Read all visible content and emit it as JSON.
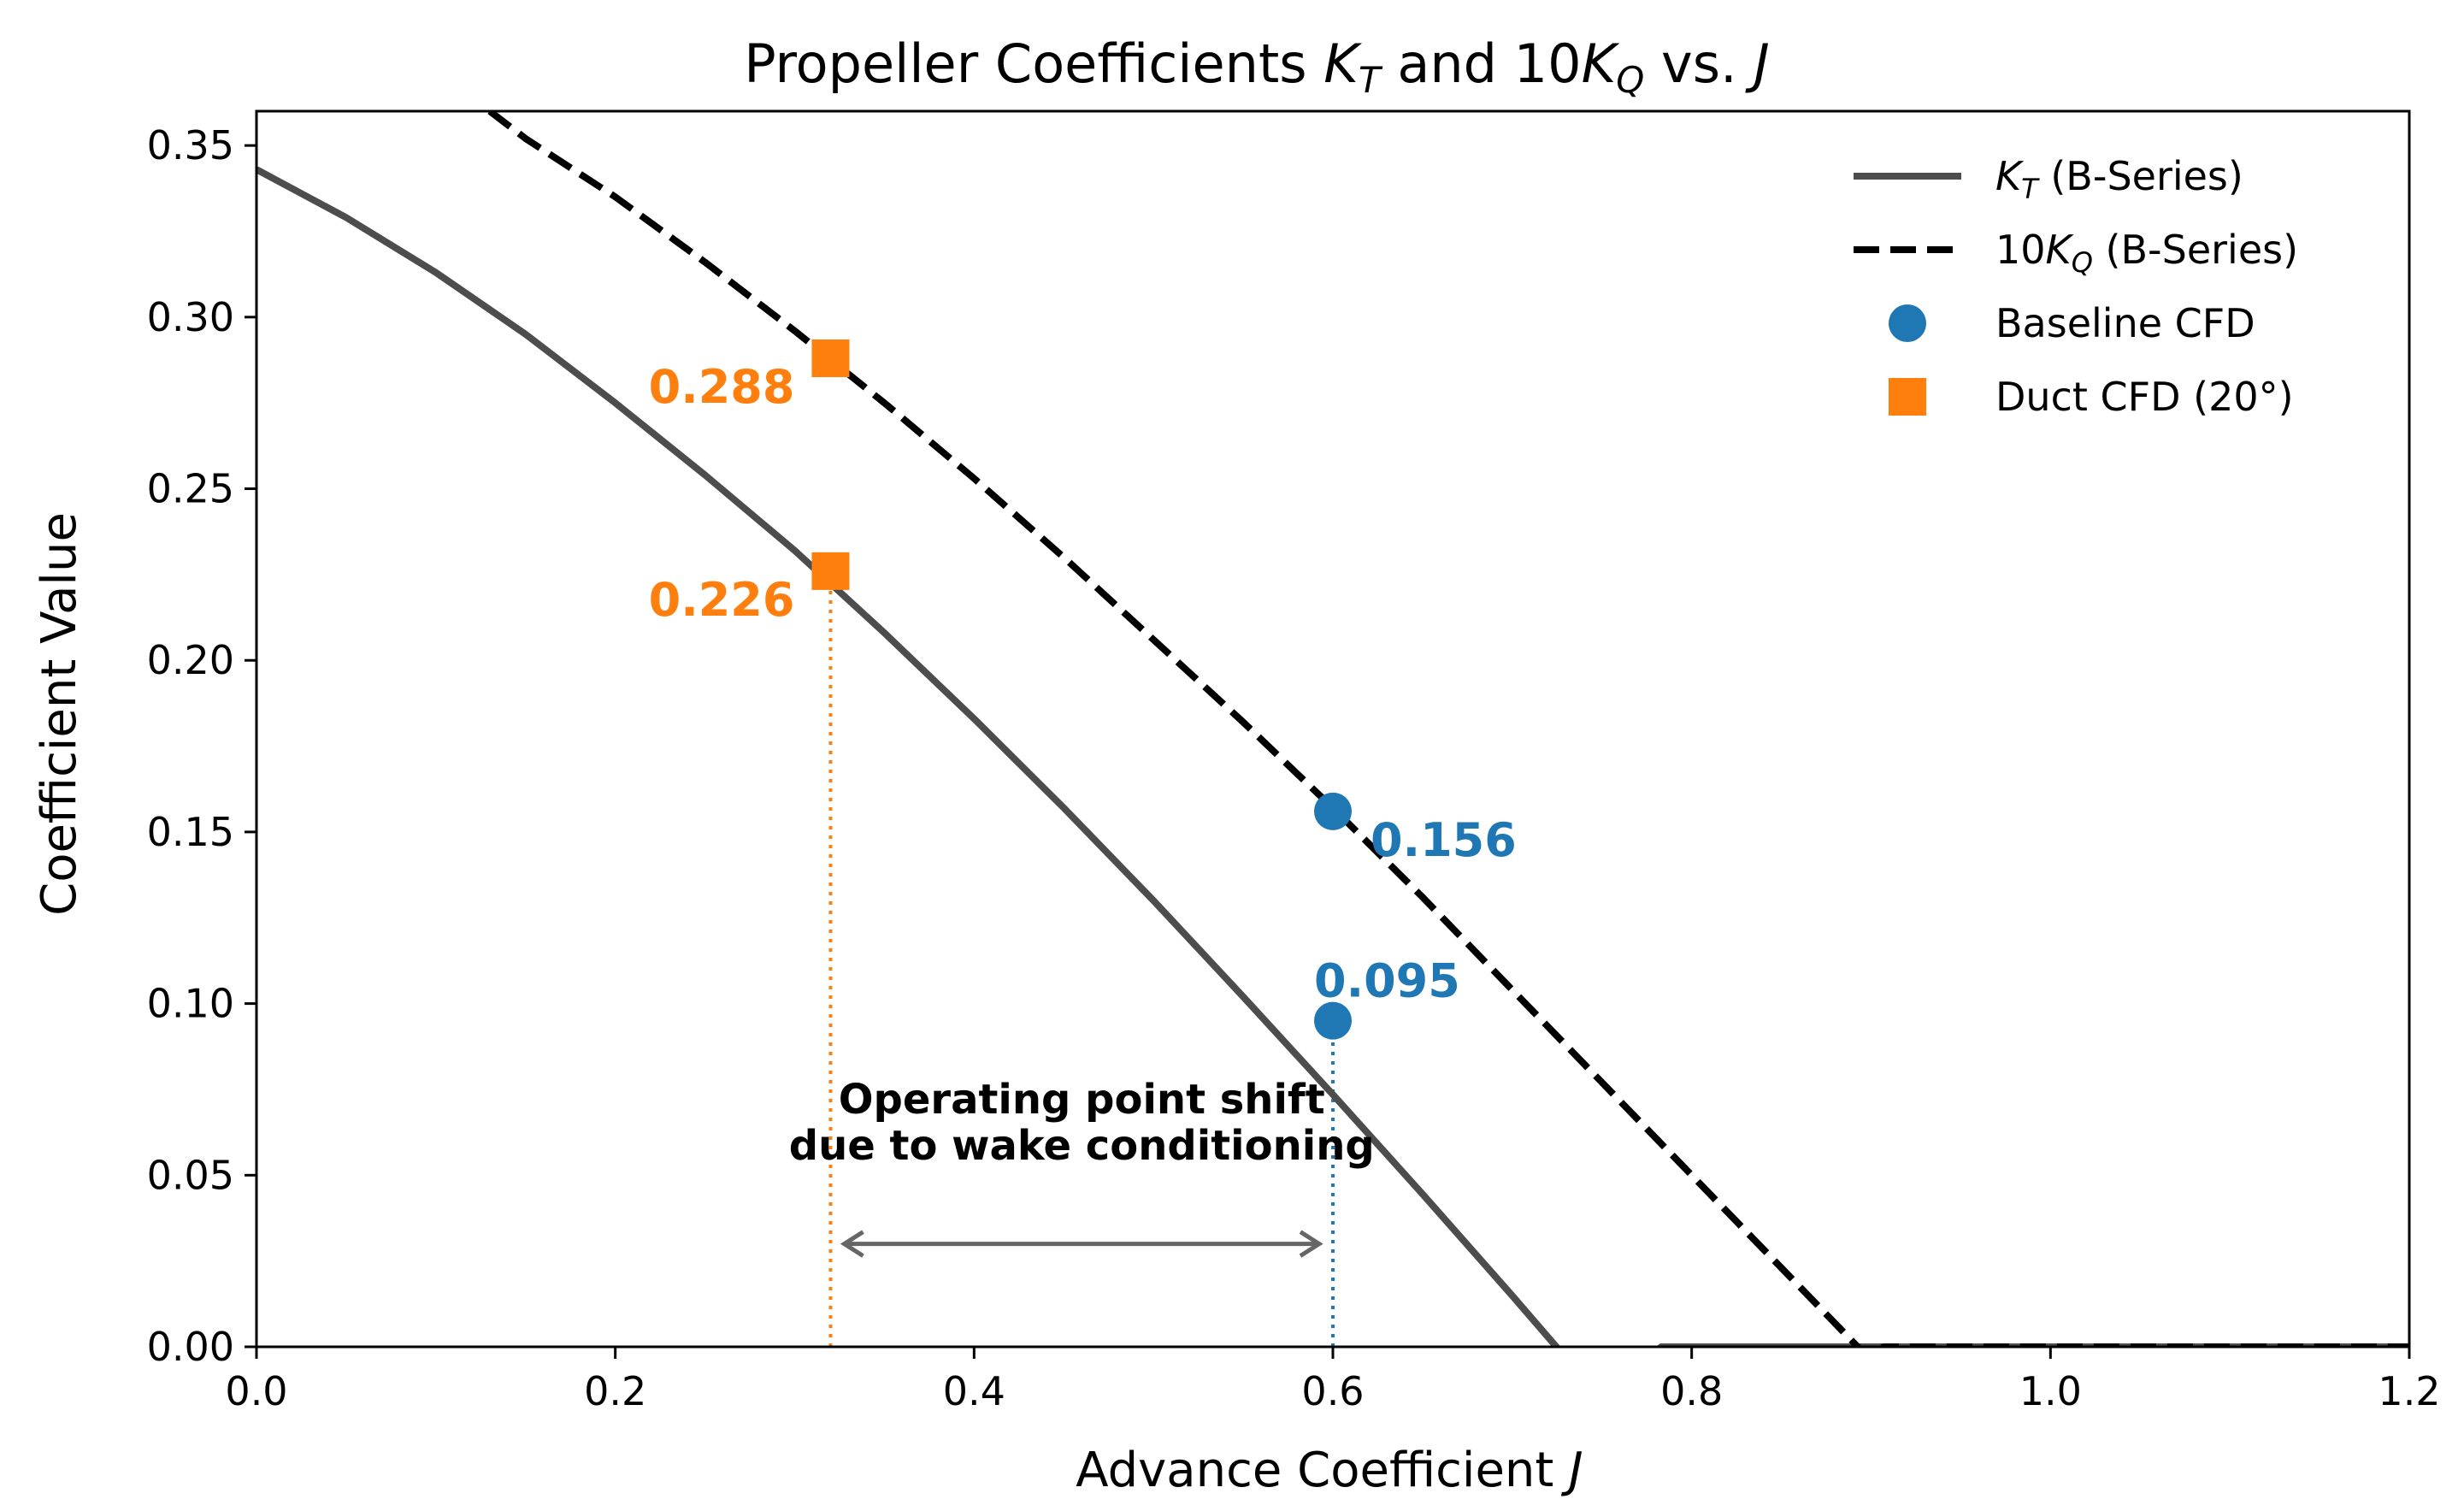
{
  "chart_data": {
    "type": "line",
    "title": "Propeller Coefficients K_T and 10K_Q vs. J",
    "title_parts": {
      "prefix": "Propeller Coefficients ",
      "kt_main": "K",
      "kt_sub": "T",
      "mid": " and 10",
      "kq_main": "K",
      "kq_sub": "Q",
      "suffix": " vs. ",
      "j": "J"
    },
    "xlabel": "Advance Coefficient J",
    "xlabel_parts": {
      "text": "Advance Coefficient ",
      "var": "J"
    },
    "ylabel": "Coefficient Value",
    "xlim": [
      0.0,
      1.2
    ],
    "ylim": [
      0.0,
      0.36
    ],
    "x_ticks": [
      0.0,
      0.2,
      0.4,
      0.6,
      0.8,
      1.0,
      1.2
    ],
    "x_tick_labels": [
      "0.0",
      "0.2",
      "0.4",
      "0.6",
      "0.8",
      "1.0",
      "1.2"
    ],
    "y_ticks": [
      0.0,
      0.05,
      0.1,
      0.15,
      0.2,
      0.25,
      0.3,
      0.35
    ],
    "y_tick_labels": [
      "0.00",
      "0.05",
      "0.10",
      "0.15",
      "0.20",
      "0.25",
      "0.30",
      "0.35"
    ],
    "series": [
      {
        "name": "K_T (B-Series)",
        "style": "solid",
        "color": "#4d4d4d",
        "x": [
          0.0,
          0.05,
          0.1,
          0.15,
          0.2,
          0.25,
          0.3,
          0.35,
          0.4,
          0.45,
          0.5,
          0.55,
          0.6,
          0.65,
          0.7,
          0.75,
          0.783,
          0.8,
          0.9,
          1.0,
          1.1,
          1.2
        ],
        "values": [
          0.343,
          0.329,
          0.313,
          0.295,
          0.275,
          0.254,
          0.232,
          0.208,
          0.183,
          0.157,
          0.13,
          0.102,
          0.0735,
          0.0445,
          0.0149,
          -0.0154,
          0.0,
          0.0,
          0.0,
          0.0,
          0.0,
          0.0
        ]
      },
      {
        "name": "10K_Q (B-Series)",
        "style": "dashed",
        "color": "#000000",
        "x": [
          0.13,
          0.15,
          0.2,
          0.25,
          0.3,
          0.35,
          0.4,
          0.45,
          0.5,
          0.55,
          0.6,
          0.65,
          0.7,
          0.75,
          0.8,
          0.85,
          0.9,
          0.907,
          1.0,
          1.1,
          1.2
        ],
        "values": [
          0.36,
          0.352,
          0.335,
          0.316,
          0.296,
          0.275,
          0.253,
          0.23,
          0.206,
          0.182,
          0.157,
          0.131,
          0.104,
          0.077,
          0.05,
          0.023,
          -0.004,
          0.0,
          0.0,
          0.0,
          0.0
        ]
      }
    ],
    "points": [
      {
        "series": "Baseline CFD",
        "marker": "circle",
        "color": "#1f77b4",
        "x": 0.6,
        "y": 0.156,
        "label": "0.156",
        "label_pos": "lower-right"
      },
      {
        "series": "Baseline CFD",
        "marker": "circle",
        "color": "#1f77b4",
        "x": 0.6,
        "y": 0.095,
        "label": "0.095",
        "label_pos": "above"
      },
      {
        "series": "Duct CFD (20°)",
        "marker": "square",
        "color": "#ff7f0e",
        "x": 0.32,
        "y": 0.288,
        "label": "0.288",
        "label_pos": "left"
      },
      {
        "series": "Duct CFD (20°)",
        "marker": "square",
        "color": "#ff7f0e",
        "x": 0.32,
        "y": 0.226,
        "label": "0.226",
        "label_pos": "left"
      }
    ],
    "vlines": [
      {
        "x": 0.32,
        "y_top": 0.226,
        "color": "#ff7f0e",
        "style": "dotted"
      },
      {
        "x": 0.6,
        "y_top": 0.095,
        "color": "#1f77b4",
        "style": "dotted"
      }
    ],
    "annotation": {
      "line1": "Operating point shift",
      "line2": "due to wake conditioning",
      "arrow_from_x": 0.6,
      "arrow_to_x": 0.32,
      "arrow_y": 0.03,
      "text_x": 0.46,
      "color": "#666666"
    },
    "legend": {
      "placement": "top-right",
      "entries": [
        {
          "main": "K",
          "sub": "T",
          "suffix": " (B-Series)",
          "kind": "solid",
          "color": "#4d4d4d"
        },
        {
          "prefix": "10",
          "main": "K",
          "sub": "Q",
          "suffix": " (B-Series)",
          "kind": "dashed",
          "color": "#000000"
        },
        {
          "text": "Baseline CFD",
          "kind": "circle",
          "color": "#1f77b4"
        },
        {
          "text": "Duct CFD (20°)",
          "kind": "square",
          "color": "#ff7f0e"
        }
      ]
    },
    "grid": false
  }
}
